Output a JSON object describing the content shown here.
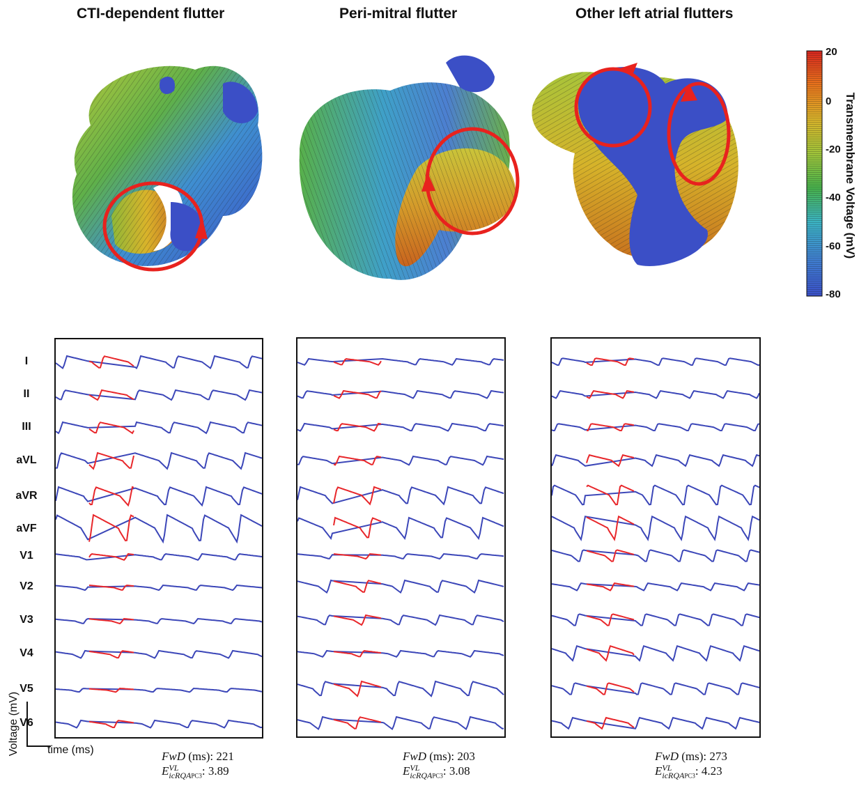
{
  "panel_titles": [
    "CTI-dependent flutter",
    "Peri-mitral flutter",
    "Other left atrial flutters"
  ],
  "colorbar": {
    "label": "Transmembrane Voltage (mV)",
    "ticks": [
      "20",
      "0",
      "-20",
      "-40",
      "-60",
      "-80"
    ],
    "colors": [
      "#d6261e",
      "#e8741c",
      "#d9b32a",
      "#9fc43a",
      "#47b24c",
      "#3bb3c4",
      "#3f7fd0",
      "#3a50c8"
    ]
  },
  "leads": [
    "I",
    "II",
    "III",
    "aVL",
    "aVR",
    "aVF",
    "V1",
    "V2",
    "V3",
    "V4",
    "V5",
    "V6"
  ],
  "trace_colors": {
    "baseline": "#3b46b8",
    "highlight": "#e8262a"
  },
  "axes": {
    "y_label": "Voltage (mV)",
    "x_label": "time (ms)"
  },
  "metrics": [
    {
      "fwd_label": "FwD",
      "fwd_unit": "(ms)",
      "fwd_value": "221",
      "e_main": "E",
      "e_sup": "VL",
      "e_sub": "icRQA",
      "e_subsub": "PC3",
      "e_value": "3.89"
    },
    {
      "fwd_label": "FwD",
      "fwd_unit": "(ms)",
      "fwd_value": "203",
      "e_main": "E",
      "e_sup": "VL",
      "e_sub": "icRQA",
      "e_subsub": "PC3",
      "e_value": "3.08"
    },
    {
      "fwd_label": "FwD",
      "fwd_unit": "(ms)",
      "fwd_value": "273",
      "e_main": "E",
      "e_sup": "VL",
      "e_sub": "icRQA",
      "e_subsub": "PC3",
      "e_value": "4.23"
    }
  ]
}
